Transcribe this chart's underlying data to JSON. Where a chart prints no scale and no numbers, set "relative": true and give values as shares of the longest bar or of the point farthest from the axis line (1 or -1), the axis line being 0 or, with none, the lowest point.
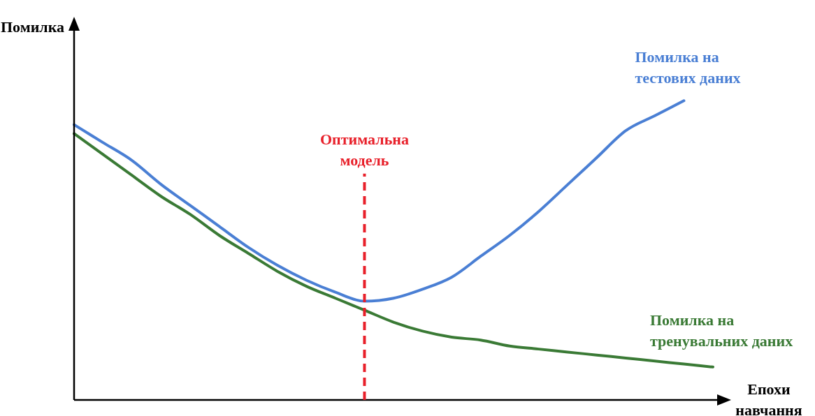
{
  "chart_data": {
    "type": "line",
    "relative": true,
    "xlabel": "Епохи навчання",
    "ylabel": "Помилка",
    "categories": [
      null,
      null,
      null,
      null,
      null,
      null,
      null,
      null,
      null,
      null,
      null,
      null,
      null,
      null,
      null,
      null,
      null,
      null,
      null,
      null,
      null,
      null,
      null
    ],
    "series": [
      {
        "name": "Помилка на тестових даних",
        "color": "#4a7fd4",
        "values": [
          0.92,
          0.86,
          0.8,
          0.72,
          0.65,
          0.58,
          0.51,
          0.45,
          0.4,
          0.36,
          0.33,
          0.34,
          0.37,
          0.41,
          0.48,
          0.55,
          0.63,
          0.72,
          0.81,
          0.9,
          0.95,
          1.0,
          null
        ]
      },
      {
        "name": "Помилка на тренувальних даних",
        "color": "#3a7a35",
        "values": [
          0.89,
          0.82,
          0.75,
          0.68,
          0.62,
          0.55,
          0.49,
          0.43,
          0.38,
          0.34,
          0.3,
          0.26,
          0.23,
          0.21,
          0.2,
          0.18,
          0.17,
          0.16,
          0.15,
          0.14,
          0.13,
          0.12,
          0.11
        ]
      }
    ],
    "annotations": [
      "Оптимальна модель"
    ],
    "marker": "none",
    "line_style": "solid",
    "legend": false
  }
}
